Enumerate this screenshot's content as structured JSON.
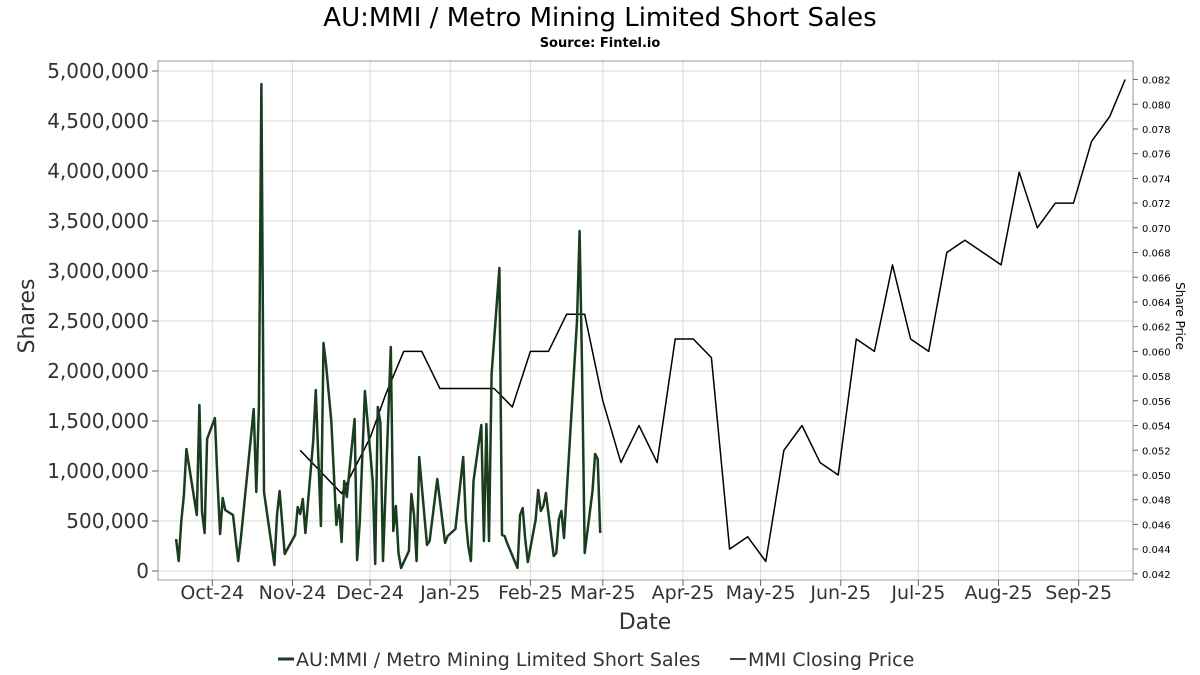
{
  "chart_data": {
    "type": "line",
    "title": "AU:MMI / Metro Mining Limited Short Sales",
    "subtitle": "Source: Fintel.io",
    "xlabel": "Date",
    "ylabel": "Shares",
    "ylabel_right": "Share Price",
    "xlim": [
      "2024-09-10",
      "2025-09-22"
    ],
    "ylim": [
      0,
      5000000
    ],
    "ylim_right": [
      0.0415,
      0.0835
    ],
    "grid": true,
    "legend_position": "bottom",
    "x_ticks": [
      {
        "date": "2024-10-01",
        "label": "Oct-24"
      },
      {
        "date": "2024-11-01",
        "label": "Nov-24"
      },
      {
        "date": "2024-12-01",
        "label": "Dec-24"
      },
      {
        "date": "2025-01-01",
        "label": "Jan-25"
      },
      {
        "date": "2025-02-01",
        "label": "Feb-25"
      },
      {
        "date": "2025-03-01",
        "label": "Mar-25"
      },
      {
        "date": "2025-04-01",
        "label": "Apr-25"
      },
      {
        "date": "2025-05-01",
        "label": "May-25"
      },
      {
        "date": "2025-06-01",
        "label": "Jun-25"
      },
      {
        "date": "2025-07-01",
        "label": "Jul-25"
      },
      {
        "date": "2025-08-01",
        "label": "Aug-25"
      },
      {
        "date": "2025-09-01",
        "label": "Sep-25"
      }
    ],
    "y_ticks": [
      "0",
      "500,000",
      "1,000,000",
      "1,500,000",
      "2,000,000",
      "2,500,000",
      "3,000,000",
      "3,500,000",
      "4,000,000",
      "4,500,000",
      "5,000,000"
    ],
    "y_tick_values": [
      0,
      500000,
      1000000,
      1500000,
      2000000,
      2500000,
      3000000,
      3500000,
      4000000,
      4500000,
      5000000
    ],
    "y_right_ticks": [
      "0.042",
      "0.044",
      "0.046",
      "0.048",
      "0.050",
      "0.052",
      "0.054",
      "0.056",
      "0.058",
      "0.060",
      "0.062",
      "0.064",
      "0.066",
      "0.068",
      "0.070",
      "0.072",
      "0.074",
      "0.076",
      "0.078",
      "0.080",
      "0.082"
    ],
    "y_right_tick_values": [
      0.042,
      0.044,
      0.046,
      0.048,
      0.05,
      0.052,
      0.054,
      0.056,
      0.058,
      0.06,
      0.062,
      0.064,
      0.066,
      0.068,
      0.07,
      0.072,
      0.074,
      0.076,
      0.078,
      0.08,
      0.082
    ],
    "series": [
      {
        "name": "AU:MMI / Metro Mining Limited Short Sales",
        "color": "#1a3d1f",
        "axis": "left",
        "points": [
          [
            "2024-09-17",
            320000
          ],
          [
            "2024-09-18",
            100000
          ],
          [
            "2024-09-19",
            500000
          ],
          [
            "2024-09-20",
            760000
          ],
          [
            "2024-09-21",
            1220000
          ],
          [
            "2024-09-25",
            560000
          ],
          [
            "2024-09-26",
            1660000
          ],
          [
            "2024-09-27",
            590000
          ],
          [
            "2024-09-28",
            380000
          ],
          [
            "2024-09-29",
            1320000
          ],
          [
            "2024-10-02",
            1530000
          ],
          [
            "2024-10-03",
            900000
          ],
          [
            "2024-10-04",
            370000
          ],
          [
            "2024-10-05",
            730000
          ],
          [
            "2024-10-06",
            610000
          ],
          [
            "2024-10-09",
            560000
          ],
          [
            "2024-10-11",
            100000
          ],
          [
            "2024-10-12",
            320000
          ],
          [
            "2024-10-17",
            1620000
          ],
          [
            "2024-10-18",
            790000
          ],
          [
            "2024-10-19",
            1650000
          ],
          [
            "2024-10-20",
            4870000
          ],
          [
            "2024-10-21",
            790000
          ],
          [
            "2024-10-25",
            60000
          ],
          [
            "2024-10-26",
            560000
          ],
          [
            "2024-10-27",
            800000
          ],
          [
            "2024-10-29",
            170000
          ],
          [
            "2024-11-02",
            360000
          ],
          [
            "2024-11-03",
            640000
          ],
          [
            "2024-11-04",
            570000
          ],
          [
            "2024-11-05",
            720000
          ],
          [
            "2024-11-06",
            380000
          ],
          [
            "2024-11-09",
            1300000
          ],
          [
            "2024-11-10",
            1810000
          ],
          [
            "2024-11-12",
            450000
          ],
          [
            "2024-11-13",
            2280000
          ],
          [
            "2024-11-14",
            2060000
          ],
          [
            "2024-11-16",
            1500000
          ],
          [
            "2024-11-18",
            460000
          ],
          [
            "2024-11-19",
            660000
          ],
          [
            "2024-11-20",
            290000
          ],
          [
            "2024-11-21",
            900000
          ],
          [
            "2024-11-22",
            740000
          ],
          [
            "2024-11-25",
            1520000
          ],
          [
            "2024-11-26",
            110000
          ],
          [
            "2024-11-27",
            480000
          ],
          [
            "2024-11-29",
            1800000
          ],
          [
            "2024-12-02",
            900000
          ],
          [
            "2024-12-03",
            70000
          ],
          [
            "2024-12-04",
            1640000
          ],
          [
            "2024-12-05",
            1480000
          ],
          [
            "2024-12-06",
            100000
          ],
          [
            "2024-12-09",
            2240000
          ],
          [
            "2024-12-10",
            400000
          ],
          [
            "2024-12-11",
            650000
          ],
          [
            "2024-12-12",
            180000
          ],
          [
            "2024-12-13",
            30000
          ],
          [
            "2024-12-16",
            200000
          ],
          [
            "2024-12-17",
            770000
          ],
          [
            "2024-12-18",
            560000
          ],
          [
            "2024-12-19",
            100000
          ],
          [
            "2024-12-20",
            1140000
          ],
          [
            "2024-12-23",
            260000
          ],
          [
            "2024-12-24",
            300000
          ],
          [
            "2024-12-27",
            920000
          ],
          [
            "2024-12-30",
            280000
          ],
          [
            "2024-12-31",
            350000
          ],
          [
            "2025-01-03",
            420000
          ],
          [
            "2025-01-06",
            1140000
          ],
          [
            "2025-01-07",
            510000
          ],
          [
            "2025-01-08",
            250000
          ],
          [
            "2025-01-09",
            100000
          ],
          [
            "2025-01-10",
            900000
          ],
          [
            "2025-01-13",
            1460000
          ],
          [
            "2025-01-14",
            300000
          ],
          [
            "2025-01-15",
            1470000
          ],
          [
            "2025-01-16",
            300000
          ],
          [
            "2025-01-17",
            1970000
          ],
          [
            "2025-01-20",
            3030000
          ],
          [
            "2025-01-21",
            360000
          ],
          [
            "2025-01-22",
            350000
          ],
          [
            "2025-01-23",
            280000
          ],
          [
            "2025-01-27",
            30000
          ],
          [
            "2025-01-28",
            560000
          ],
          [
            "2025-01-29",
            630000
          ],
          [
            "2025-01-30",
            320000
          ],
          [
            "2025-01-31",
            90000
          ],
          [
            "2025-02-03",
            510000
          ],
          [
            "2025-02-04",
            810000
          ],
          [
            "2025-02-05",
            600000
          ],
          [
            "2025-02-06",
            650000
          ],
          [
            "2025-02-07",
            780000
          ],
          [
            "2025-02-10",
            150000
          ],
          [
            "2025-02-11",
            180000
          ],
          [
            "2025-02-12",
            520000
          ],
          [
            "2025-02-13",
            600000
          ],
          [
            "2025-02-14",
            330000
          ],
          [
            "2025-02-19",
            2500000
          ],
          [
            "2025-02-20",
            3400000
          ],
          [
            "2025-02-21",
            2000000
          ],
          [
            "2025-02-22",
            180000
          ],
          [
            "2025-02-25",
            800000
          ],
          [
            "2025-02-26",
            1170000
          ],
          [
            "2025-02-27",
            1120000
          ],
          [
            "2025-02-28",
            380000
          ]
        ]
      },
      {
        "name": "MMI Closing Price",
        "color": "#000000",
        "axis": "right",
        "points": [
          [
            "2024-11-04",
            0.052
          ],
          [
            "2024-11-20",
            0.0485
          ],
          [
            "2024-12-01",
            0.053
          ],
          [
            "2024-12-07",
            0.0565
          ],
          [
            "2024-12-14",
            0.06
          ],
          [
            "2024-12-21",
            0.06
          ],
          [
            "2024-12-28",
            0.057
          ],
          [
            "2025-01-04",
            0.057
          ],
          [
            "2025-01-11",
            0.057
          ],
          [
            "2025-01-18",
            0.057
          ],
          [
            "2025-01-25",
            0.0555
          ],
          [
            "2025-02-01",
            0.06
          ],
          [
            "2025-02-08",
            0.06
          ],
          [
            "2025-02-15",
            0.063
          ],
          [
            "2025-02-22",
            0.063
          ],
          [
            "2025-03-01",
            0.056
          ],
          [
            "2025-03-08",
            0.051
          ],
          [
            "2025-03-15",
            0.054
          ],
          [
            "2025-03-22",
            0.051
          ],
          [
            "2025-03-29",
            0.061
          ],
          [
            "2025-04-05",
            0.061
          ],
          [
            "2025-04-12",
            0.0595
          ],
          [
            "2025-04-19",
            0.044
          ],
          [
            "2025-04-26",
            0.045
          ],
          [
            "2025-05-03",
            0.043
          ],
          [
            "2025-05-10",
            0.052
          ],
          [
            "2025-05-17",
            0.054
          ],
          [
            "2025-05-24",
            0.051
          ],
          [
            "2025-05-31",
            0.05
          ],
          [
            "2025-06-07",
            0.061
          ],
          [
            "2025-06-14",
            0.06
          ],
          [
            "2025-06-21",
            0.067
          ],
          [
            "2025-06-28",
            0.061
          ],
          [
            "2025-07-05",
            0.06
          ],
          [
            "2025-07-12",
            0.068
          ],
          [
            "2025-07-19",
            0.069
          ],
          [
            "2025-07-26",
            0.068
          ],
          [
            "2025-08-02",
            0.067
          ],
          [
            "2025-08-09",
            0.0745
          ],
          [
            "2025-08-16",
            0.07
          ],
          [
            "2025-08-23",
            0.072
          ],
          [
            "2025-08-30",
            0.072
          ],
          [
            "2025-09-06",
            0.077
          ],
          [
            "2025-09-13",
            0.079
          ],
          [
            "2025-09-19",
            0.082
          ]
        ]
      }
    ]
  }
}
